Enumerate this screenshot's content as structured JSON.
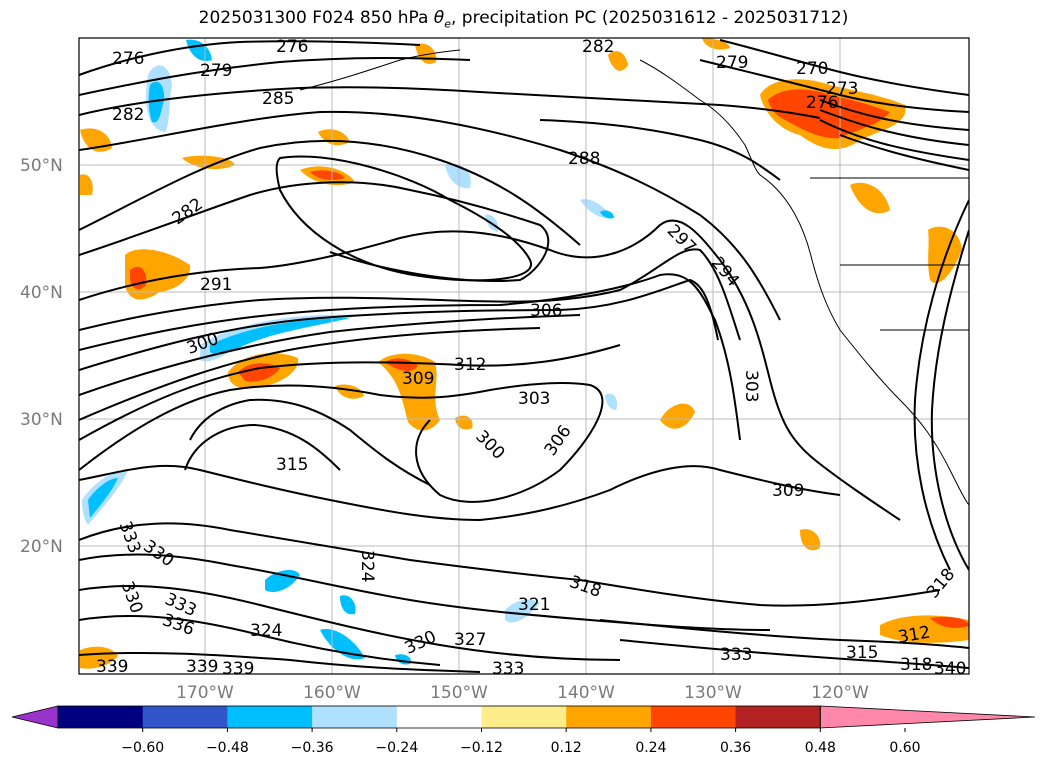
{
  "title": {
    "run": "2025031300",
    "forecast": "F024",
    "level": "850 hPa",
    "symbol": "θ",
    "subscript": "e",
    "field": ", precipitation PC (2025031612 - 2025031712)"
  },
  "axes": {
    "latitudes": [
      {
        "label": "50°N",
        "value": 50
      },
      {
        "label": "40°N",
        "value": 40
      },
      {
        "label": "30°N",
        "value": 30
      },
      {
        "label": "20°N",
        "value": 20
      }
    ],
    "longitudes": [
      {
        "label": "170°W",
        "value": -170
      },
      {
        "label": "160°W",
        "value": -160
      },
      {
        "label": "150°W",
        "value": -150
      },
      {
        "label": "140°W",
        "value": -140
      },
      {
        "label": "130°W",
        "value": -130
      },
      {
        "label": "120°W",
        "value": -120
      }
    ]
  },
  "contour_labels": [
    "276",
    "279",
    "276",
    "282",
    "285",
    "282",
    "288",
    "279",
    "270",
    "273",
    "276",
    "282",
    "291",
    "294",
    "297",
    "300",
    "306",
    "312",
    "309",
    "303",
    "303",
    "306",
    "300",
    "315",
    "309",
    "333",
    "330",
    "330",
    "333",
    "336",
    "324",
    "324",
    "321",
    "318",
    "330",
    "327",
    "333",
    "339",
    "339",
    "339",
    "333",
    "315",
    "312",
    "318",
    "318",
    "340"
  ],
  "colorbar": {
    "colors": [
      "#9933cc",
      "#000080",
      "#3355cc",
      "#00bfff",
      "#b0e0ff",
      "#ffffff",
      "#ffec8b",
      "#ffa500",
      "#ff4500",
      "#b22222",
      "#ff88aa"
    ],
    "ticks": [
      "−0.60",
      "−0.48",
      "−0.36",
      "−0.24",
      "−0.12",
      "0.12",
      "0.24",
      "0.36",
      "0.48",
      "0.60"
    ]
  },
  "colors": {
    "positive_low": "#ffec8b",
    "positive_mid": "#ffa500",
    "positive_high": "#ff4500",
    "negative_low": "#b0e0ff",
    "negative_mid": "#00bfff",
    "negative_high": "#3355cc",
    "contour": "#000000",
    "grid": "#bbbbbb"
  }
}
